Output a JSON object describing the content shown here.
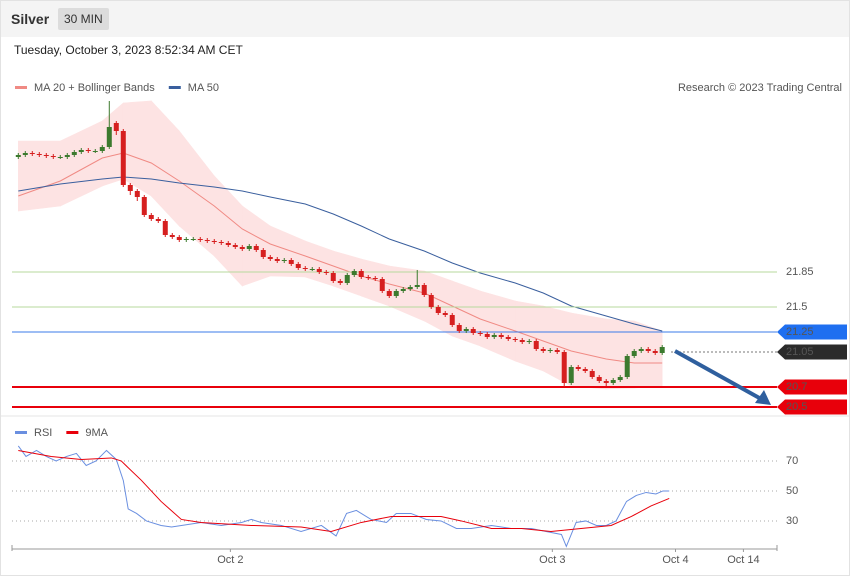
{
  "header": {
    "title": "Silver",
    "timeframe": "30 MIN",
    "date": "Tuesday, October 3, 2023 8:52:34 AM CET"
  },
  "chart_data": [
    {
      "type": "candlestick",
      "credit": "Research © 2023 Trading Central",
      "up_color": "#3c7a2e",
      "down_color": "#d61f1f",
      "xlim": [
        -0.9,
        108.4
      ],
      "ylim": [
        20.46,
        23.61
      ],
      "x": [
        0,
        1,
        2,
        3,
        4,
        5,
        6,
        7,
        8,
        9,
        10,
        11,
        12,
        13,
        14,
        15,
        16,
        17,
        18,
        19,
        20,
        21,
        22,
        23,
        24,
        25,
        26,
        27,
        28,
        29,
        30,
        31,
        32,
        33,
        34,
        35,
        36,
        37,
        38,
        39,
        40,
        41,
        42,
        43,
        44,
        45,
        46,
        47,
        48,
        49,
        50,
        51,
        52,
        53,
        54,
        55,
        56,
        57,
        58,
        59,
        60,
        61,
        62,
        63,
        64,
        65,
        66,
        67,
        68,
        69,
        70,
        71,
        72,
        73,
        74,
        75,
        76,
        77,
        78,
        79,
        80,
        81,
        82,
        83,
        84,
        85,
        86,
        87,
        88,
        89,
        90,
        91,
        92
      ],
      "candles": [
        [
          23.0,
          23.04,
          22.98,
          23.02
        ],
        [
          23.02,
          23.06,
          23.0,
          23.04
        ],
        [
          23.04,
          23.06,
          23.01,
          23.03
        ],
        [
          23.03,
          23.05,
          23.0,
          23.02
        ],
        [
          23.02,
          23.04,
          22.99,
          23.01
        ],
        [
          23.01,
          23.03,
          22.98,
          23.0
        ],
        [
          23.0,
          23.02,
          22.98,
          23.0
        ],
        [
          23.0,
          23.04,
          22.98,
          23.02
        ],
        [
          23.02,
          23.07,
          23.0,
          23.05
        ],
        [
          23.05,
          23.09,
          23.03,
          23.07
        ],
        [
          23.07,
          23.09,
          23.04,
          23.06
        ],
        [
          23.06,
          23.08,
          23.04,
          23.06
        ],
        [
          23.06,
          23.12,
          23.04,
          23.1
        ],
        [
          23.1,
          23.56,
          23.08,
          23.3
        ],
        [
          23.34,
          23.36,
          23.22,
          23.26
        ],
        [
          23.26,
          23.28,
          22.7,
          22.72
        ],
        [
          22.72,
          22.74,
          22.62,
          22.66
        ],
        [
          22.66,
          22.68,
          22.56,
          22.6
        ],
        [
          22.6,
          22.62,
          22.4,
          22.42
        ],
        [
          22.42,
          22.44,
          22.36,
          22.38
        ],
        [
          22.38,
          22.4,
          22.34,
          22.36
        ],
        [
          22.36,
          22.38,
          22.2,
          22.22
        ],
        [
          22.22,
          22.24,
          22.18,
          22.2
        ],
        [
          22.2,
          22.22,
          22.15,
          22.17
        ],
        [
          22.17,
          22.2,
          22.15,
          22.18
        ],
        [
          22.18,
          22.2,
          22.16,
          22.18
        ],
        [
          22.18,
          22.2,
          22.15,
          22.17
        ],
        [
          22.17,
          22.19,
          22.14,
          22.16
        ],
        [
          22.16,
          22.18,
          22.13,
          22.15
        ],
        [
          22.15,
          22.17,
          22.12,
          22.14
        ],
        [
          22.14,
          22.16,
          22.1,
          22.12
        ],
        [
          22.12,
          22.14,
          22.08,
          22.1
        ],
        [
          22.1,
          22.12,
          22.06,
          22.08
        ],
        [
          22.08,
          22.13,
          22.06,
          22.11
        ],
        [
          22.11,
          22.13,
          22.05,
          22.07
        ],
        [
          22.07,
          22.09,
          21.98,
          22.0
        ],
        [
          22.0,
          22.02,
          21.96,
          21.98
        ],
        [
          21.98,
          22.0,
          21.94,
          21.96
        ],
        [
          21.96,
          21.99,
          21.94,
          21.97
        ],
        [
          21.97,
          21.99,
          21.91,
          21.93
        ],
        [
          21.93,
          21.95,
          21.87,
          21.89
        ],
        [
          21.89,
          21.91,
          21.86,
          21.88
        ],
        [
          21.88,
          21.9,
          21.86,
          21.88
        ],
        [
          21.88,
          21.9,
          21.83,
          21.85
        ],
        [
          21.85,
          21.87,
          21.82,
          21.84
        ],
        [
          21.84,
          21.86,
          21.74,
          21.76
        ],
        [
          21.76,
          21.78,
          21.72,
          21.74
        ],
        [
          21.74,
          21.84,
          21.72,
          21.82
        ],
        [
          21.82,
          21.88,
          21.8,
          21.86
        ],
        [
          21.86,
          21.88,
          21.78,
          21.8
        ],
        [
          21.8,
          21.82,
          21.77,
          21.79
        ],
        [
          21.79,
          21.81,
          21.76,
          21.78
        ],
        [
          21.78,
          21.8,
          21.64,
          21.66
        ],
        [
          21.66,
          21.68,
          21.59,
          21.61
        ],
        [
          21.61,
          21.68,
          21.59,
          21.66
        ],
        [
          21.66,
          21.7,
          21.64,
          21.68
        ],
        [
          21.68,
          21.72,
          21.66,
          21.7
        ],
        [
          21.7,
          21.87,
          21.68,
          21.72
        ],
        [
          21.72,
          21.74,
          21.6,
          21.62
        ],
        [
          21.62,
          21.64,
          21.48,
          21.5
        ],
        [
          21.5,
          21.52,
          21.42,
          21.44
        ],
        [
          21.44,
          21.46,
          21.4,
          21.42
        ],
        [
          21.42,
          21.44,
          21.3,
          21.32
        ],
        [
          21.32,
          21.34,
          21.24,
          21.26
        ],
        [
          21.26,
          21.3,
          21.24,
          21.28
        ],
        [
          21.28,
          21.3,
          21.22,
          21.24
        ],
        [
          21.24,
          21.26,
          21.21,
          21.23
        ],
        [
          21.23,
          21.25,
          21.18,
          21.2
        ],
        [
          21.2,
          21.24,
          21.18,
          21.22
        ],
        [
          21.22,
          21.24,
          21.18,
          21.2
        ],
        [
          21.2,
          21.22,
          21.16,
          21.18
        ],
        [
          21.18,
          21.2,
          21.15,
          21.17
        ],
        [
          21.17,
          21.19,
          21.13,
          21.15
        ],
        [
          21.15,
          21.18,
          21.13,
          21.16
        ],
        [
          21.16,
          21.18,
          21.06,
          21.08
        ],
        [
          21.08,
          21.1,
          21.04,
          21.06
        ],
        [
          21.06,
          21.09,
          21.04,
          21.07
        ],
        [
          21.07,
          21.09,
          21.03,
          21.05
        ],
        [
          21.05,
          21.07,
          20.7,
          20.74
        ],
        [
          20.74,
          20.92,
          20.72,
          20.9
        ],
        [
          20.9,
          20.92,
          20.86,
          20.88
        ],
        [
          20.88,
          20.9,
          20.84,
          20.86
        ],
        [
          20.86,
          20.88,
          20.78,
          20.8
        ],
        [
          20.8,
          20.82,
          20.74,
          20.76
        ],
        [
          20.76,
          20.78,
          20.71,
          20.74
        ],
        [
          20.74,
          20.79,
          20.72,
          20.77
        ],
        [
          20.77,
          20.82,
          20.75,
          20.8
        ],
        [
          20.8,
          21.03,
          20.78,
          21.01
        ],
        [
          21.01,
          21.08,
          20.99,
          21.06
        ],
        [
          21.06,
          21.1,
          21.04,
          21.08
        ],
        [
          21.08,
          21.1,
          21.04,
          21.06
        ],
        [
          21.06,
          21.08,
          21.02,
          21.04
        ],
        [
          21.04,
          21.12,
          21.02,
          21.1
        ]
      ],
      "series": [
        {
          "name": "MA 20 + Bollinger Bands",
          "color": "#f08a84",
          "band_color": "#fde3e3",
          "x": [
            0,
            6,
            12,
            15,
            19,
            23,
            28,
            32,
            36,
            41,
            45,
            49,
            53,
            58,
            62,
            66,
            71,
            75,
            79,
            84,
            88,
            92
          ],
          "values": [
            22.61,
            22.76,
            22.99,
            23.04,
            22.94,
            22.76,
            22.51,
            22.28,
            22.13,
            22.01,
            21.91,
            21.81,
            21.73,
            21.64,
            21.51,
            21.38,
            21.26,
            21.16,
            21.06,
            20.98,
            20.94,
            20.94
          ],
          "upper": [
            23.16,
            23.16,
            23.36,
            23.54,
            23.56,
            23.26,
            22.81,
            22.51,
            22.31,
            22.16,
            22.06,
            21.98,
            21.91,
            21.86,
            21.76,
            21.66,
            21.56,
            21.51,
            21.44,
            21.38,
            21.36,
            21.26
          ],
          "lower": [
            22.46,
            22.51,
            22.71,
            22.78,
            22.61,
            22.31,
            22.01,
            21.71,
            21.81,
            21.8,
            21.71,
            21.61,
            21.51,
            21.36,
            21.21,
            21.11,
            20.96,
            20.86,
            20.71,
            20.68,
            20.69,
            20.71
          ]
        },
        {
          "name": "MA 50",
          "color": "#3a5f9e",
          "x": [
            0,
            6,
            12,
            15,
            19,
            23,
            28,
            32,
            36,
            41,
            45,
            49,
            53,
            58,
            62,
            66,
            71,
            75,
            79,
            84,
            88,
            92
          ],
          "values": [
            22.66,
            22.73,
            22.78,
            22.8,
            22.78,
            22.74,
            22.7,
            22.66,
            22.6,
            22.53,
            22.43,
            22.31,
            22.18,
            22.06,
            21.94,
            21.84,
            21.74,
            21.64,
            21.51,
            21.41,
            21.33,
            21.26
          ]
        }
      ],
      "levels": [
        {
          "value": 21.85,
          "color": "#b7d99c",
          "label_color": "#333333"
        },
        {
          "value": 21.5,
          "color": "#b7d99c",
          "label_color": "#333333"
        },
        {
          "value": 21.25,
          "color": "#3b7be8",
          "label_color": "#ffffff",
          "label_fill": "#1f6ff0"
        },
        {
          "value": 21.05,
          "color": "#777777",
          "label_color": "#ffffff",
          "label_fill": "#2b2b2b",
          "style": "dotted"
        },
        {
          "value": 20.7,
          "color": "#e8000b",
          "label_color": "#ffffff",
          "label_fill": "#e8000b",
          "width": 2
        },
        {
          "value": 20.5,
          "color": "#e8000b",
          "label_color": "#ffffff",
          "label_fill": "#e8000b",
          "width": 2
        }
      ]
    },
    {
      "type": "line",
      "xlim": [
        -0.9,
        108.4
      ],
      "ylim": [
        13.3,
        83.3
      ],
      "yticks": [
        30,
        50,
        70
      ],
      "grid": true,
      "xticks": [
        {
          "value": 30.3,
          "label": "Oct 2"
        },
        {
          "value": 76.3,
          "label": "Oct 3"
        },
        {
          "value": 93.9,
          "label": "Oct 4"
        },
        {
          "value": 103.6,
          "label": "Oct 14"
        }
      ],
      "series": [
        {
          "name": "RSI",
          "color": "#6a8fe0",
          "x": [
            0,
            1.1,
            2.6,
            4,
            5.4,
            6.9,
            8.3,
            9.7,
            11.1,
            12.6,
            14,
            15,
            15.7,
            16.9,
            18.3,
            20.4,
            21.9,
            23.3,
            26.1,
            29,
            31.9,
            33.3,
            34.7,
            37.6,
            40.4,
            43.3,
            45.4,
            46.9,
            48.3,
            50.4,
            52.6,
            54,
            56.1,
            58.3,
            60.4,
            62.6,
            64.7,
            67.6,
            70.4,
            73.3,
            75.4,
            77.6,
            78.3,
            79.7,
            81.1,
            82.6,
            84,
            85.4,
            86.9,
            88.3,
            89.7,
            91.1,
            92.1,
            93
          ],
          "values": [
            80,
            73,
            77,
            73,
            70,
            73,
            75,
            67,
            70,
            77,
            71,
            57,
            38,
            35,
            30,
            27,
            26,
            27,
            29,
            27,
            29,
            31,
            29,
            27,
            23,
            27,
            20,
            35,
            37,
            31,
            29,
            35,
            35,
            31,
            30,
            25,
            25,
            27,
            25,
            25,
            23,
            21,
            13,
            29,
            30,
            27,
            27,
            30,
            43,
            47,
            49,
            48,
            50,
            50
          ]
        },
        {
          "name": "9MA",
          "color": "#e8000b",
          "x": [
            0,
            4.7,
            9,
            13.3,
            14.7,
            17.6,
            20.4,
            23.3,
            26.1,
            33.3,
            40.4,
            44.7,
            49,
            53.3,
            57.6,
            60.4,
            63.3,
            67.6,
            71.9,
            76.1,
            80.4,
            84.7,
            87.6,
            90.4,
            93
          ],
          "values": [
            77,
            73,
            71,
            72,
            70,
            57,
            43,
            31,
            29,
            27,
            26,
            23,
            29,
            33,
            33,
            33,
            30,
            25,
            25,
            23,
            25,
            27,
            33,
            40,
            45
          ]
        }
      ]
    }
  ]
}
